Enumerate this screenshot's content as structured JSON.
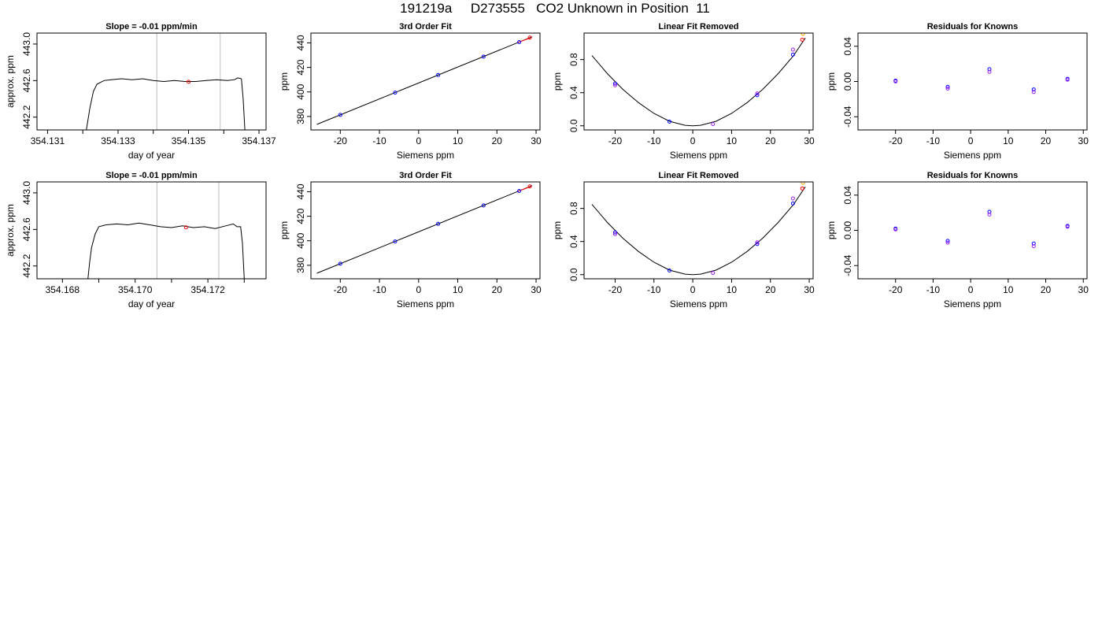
{
  "page": {
    "title": "191219a     D273555   CO2 Unknown in Position  11"
  },
  "colors": {
    "frame": "#000000",
    "trace": "#000000",
    "gridline": "#bebebe",
    "reference_marker": "#ff0000",
    "known_point": "#0000ff",
    "alt_point": "#a020f0",
    "extra_point": "#ffa500",
    "fit_line": "#000000"
  },
  "chart_data": [
    {
      "id": "r1-trace",
      "type": "line",
      "title": "Slope =  -0.01  ppm/min",
      "xlabel": "day of year",
      "ylabel": "approx. ppm",
      "xlim": [
        354.1307,
        354.1372
      ],
      "ylim": [
        442.06,
        443.12
      ],
      "xticks": [
        354.131,
        354.132,
        354.133,
        354.134,
        354.135,
        354.136,
        354.137
      ],
      "xtick_labels": [
        "354.131",
        "",
        "354.133",
        "",
        "354.135",
        "",
        "354.137"
      ],
      "yticks": [
        442.2,
        442.6,
        443.0
      ],
      "ytick_labels": [
        "442.2",
        "442.6",
        "443.0"
      ],
      "vlines": [
        354.1341,
        354.1359
      ],
      "marker": {
        "x": 354.135,
        "y": 442.587
      },
      "x": [
        354.1321,
        354.1322,
        354.1323,
        354.1324,
        354.1326,
        354.1328,
        354.1331,
        354.1334,
        354.1337,
        354.134,
        354.1343,
        354.1346,
        354.1349,
        354.1352,
        354.1355,
        354.1358,
        354.1361,
        354.1363,
        354.1364,
        354.1365,
        354.13655,
        354.1366
      ],
      "y": [
        442.06,
        442.3,
        442.48,
        442.56,
        442.6,
        442.61,
        442.62,
        442.61,
        442.62,
        442.6,
        442.59,
        442.6,
        442.59,
        442.59,
        442.6,
        442.61,
        442.6,
        442.61,
        442.63,
        442.62,
        442.4,
        442.06
      ]
    },
    {
      "id": "r1-fit",
      "type": "scatter",
      "title": "3rd Order Fit",
      "xlabel": "Siemens ppm",
      "ylabel": "ppm",
      "xlim": [
        -27.5,
        31
      ],
      "ylim": [
        369,
        448
      ],
      "xticks": [
        -20,
        -10,
        0,
        10,
        20,
        30
      ],
      "xtick_labels": [
        "-20",
        "-10",
        "0",
        "10",
        "20",
        "30"
      ],
      "yticks": [
        380,
        400,
        420,
        440
      ],
      "ytick_labels": [
        "380",
        "400",
        "420",
        "440"
      ],
      "line": {
        "x": [
          -26,
          29
        ],
        "y": [
          373.5,
          445
        ]
      },
      "red_segment": {
        "x": [
          25.5,
          28.5
        ],
        "y": [
          440.5,
          444
        ]
      },
      "points": [
        {
          "x": -20,
          "y": 381.3,
          "color": "known_point"
        },
        {
          "x": -6,
          "y": 399.4,
          "color": "known_point"
        },
        {
          "x": 5,
          "y": 413.8,
          "color": "known_point"
        },
        {
          "x": 16.6,
          "y": 428.8,
          "color": "known_point"
        },
        {
          "x": 25.7,
          "y": 440.6,
          "color": "known_point"
        },
        {
          "x": 28.4,
          "y": 444.3,
          "color": "reference_marker"
        }
      ]
    },
    {
      "id": "r1-linear",
      "type": "scatter",
      "title": "Linear Fit Removed",
      "xlabel": "Siemens ppm",
      "ylabel": "ppm",
      "xlim": [
        -28,
        31
      ],
      "ylim": [
        -0.05,
        1.12
      ],
      "xticks": [
        -20,
        -10,
        0,
        10,
        20,
        30
      ],
      "xtick_labels": [
        "-20",
        "-10",
        "0",
        "10",
        "20",
        "30"
      ],
      "yticks": [
        0.0,
        0.4,
        0.8
      ],
      "ytick_labels": [
        "0.0",
        "0.4",
        "0.8"
      ],
      "curve": {
        "x": [
          -26,
          -22,
          -18,
          -14,
          -10,
          -6,
          -2,
          0,
          2,
          6,
          10,
          14,
          18,
          22,
          26,
          29
        ],
        "y": [
          0.85,
          0.63,
          0.44,
          0.28,
          0.15,
          0.055,
          0.006,
          0.0,
          0.006,
          0.055,
          0.15,
          0.28,
          0.44,
          0.63,
          0.85,
          1.06
        ]
      },
      "points": [
        {
          "x": -20,
          "y": 0.51,
          "color": "known_point"
        },
        {
          "x": -20,
          "y": 0.49,
          "color": "alt_point"
        },
        {
          "x": -6,
          "y": 0.05,
          "color": "known_point"
        },
        {
          "x": 5.2,
          "y": 0.02,
          "color": "alt_point"
        },
        {
          "x": 16.6,
          "y": 0.37,
          "color": "known_point"
        },
        {
          "x": 16.6,
          "y": 0.39,
          "color": "alt_point"
        },
        {
          "x": 25.8,
          "y": 0.86,
          "color": "known_point"
        },
        {
          "x": 25.8,
          "y": 0.92,
          "color": "alt_point"
        },
        {
          "x": 28.2,
          "y": 1.04,
          "color": "reference_marker"
        },
        {
          "x": 28.4,
          "y": 1.11,
          "color": "extra_point"
        }
      ]
    },
    {
      "id": "r1-resid",
      "type": "scatter",
      "title": "Residuals for Knowns",
      "xlabel": "Siemens ppm",
      "ylabel": "ppm",
      "xlim": [
        -30,
        31
      ],
      "ylim": [
        -0.055,
        0.055
      ],
      "xticks": [
        -20,
        -10,
        0,
        10,
        20,
        30
      ],
      "xtick_labels": [
        "-20",
        "-10",
        "0",
        "10",
        "20",
        "30"
      ],
      "yticks": [
        -0.04,
        0.0,
        0.04
      ],
      "ytick_labels": [
        "-0.04",
        "0.00",
        "0.04"
      ],
      "points": [
        {
          "x": -20,
          "y": 0.001,
          "color": "known_point"
        },
        {
          "x": -20,
          "y": 0.0,
          "color": "alt_point"
        },
        {
          "x": -6.1,
          "y": -0.006,
          "color": "known_point"
        },
        {
          "x": -6.1,
          "y": -0.008,
          "color": "alt_point"
        },
        {
          "x": 5,
          "y": 0.014,
          "color": "known_point"
        },
        {
          "x": 5,
          "y": 0.011,
          "color": "alt_point"
        },
        {
          "x": 16.8,
          "y": -0.009,
          "color": "known_point"
        },
        {
          "x": 16.8,
          "y": -0.012,
          "color": "alt_point"
        },
        {
          "x": 25.8,
          "y": 0.003,
          "color": "known_point"
        },
        {
          "x": 25.8,
          "y": 0.002,
          "color": "alt_point"
        }
      ]
    },
    {
      "id": "r2-trace",
      "type": "line",
      "title": "Slope =  -0.01  ppm/min",
      "xlabel": "day of year",
      "ylabel": "approx. ppm",
      "xlim": [
        354.1673,
        354.1736
      ],
      "ylim": [
        442.06,
        443.12
      ],
      "xticks": [
        354.168,
        354.169,
        354.17,
        354.171,
        354.172,
        354.173
      ],
      "xtick_labels": [
        "354.168",
        "",
        "354.170",
        "",
        "354.172",
        ""
      ],
      "yticks": [
        442.2,
        442.6,
        443.0
      ],
      "ytick_labels": [
        "442.2",
        "442.6",
        "443.0"
      ],
      "vlines": [
        354.1706,
        354.1723
      ],
      "marker": {
        "x": 354.1714,
        "y": 442.622
      },
      "x": [
        354.1687,
        354.16875,
        354.1688,
        354.1689,
        354.169,
        354.1692,
        354.1695,
        354.1698,
        354.1701,
        354.1704,
        354.1707,
        354.171,
        354.1713,
        354.1716,
        354.1719,
        354.1722,
        354.1725,
        354.1727,
        354.1728,
        354.1729,
        354.17295,
        354.173
      ],
      "y": [
        442.06,
        442.25,
        442.4,
        442.55,
        442.63,
        442.65,
        442.66,
        442.65,
        442.67,
        442.65,
        442.63,
        442.62,
        442.64,
        442.62,
        442.63,
        442.61,
        442.64,
        442.66,
        442.63,
        442.63,
        442.45,
        442.06
      ]
    },
    {
      "id": "r2-fit",
      "type": "scatter",
      "title": "3rd Order Fit",
      "xlabel": "Siemens ppm",
      "ylabel": "ppm",
      "xlim": [
        -27.5,
        31
      ],
      "ylim": [
        369,
        448
      ],
      "xticks": [
        -20,
        -10,
        0,
        10,
        20,
        30
      ],
      "xtick_labels": [
        "-20",
        "-10",
        "0",
        "10",
        "20",
        "30"
      ],
      "yticks": [
        380,
        400,
        420,
        440
      ],
      "ytick_labels": [
        "380",
        "400",
        "420",
        "440"
      ],
      "line": {
        "x": [
          -26,
          29
        ],
        "y": [
          373.5,
          445
        ]
      },
      "red_segment": {
        "x": [
          25.5,
          28.5
        ],
        "y": [
          440.5,
          444
        ]
      },
      "points": [
        {
          "x": -20,
          "y": 381.3,
          "color": "known_point"
        },
        {
          "x": -6,
          "y": 399.4,
          "color": "known_point"
        },
        {
          "x": 5,
          "y": 413.8,
          "color": "known_point"
        },
        {
          "x": 16.6,
          "y": 428.8,
          "color": "known_point"
        },
        {
          "x": 25.7,
          "y": 440.6,
          "color": "known_point"
        },
        {
          "x": 28.4,
          "y": 444.3,
          "color": "reference_marker"
        }
      ]
    },
    {
      "id": "r2-linear",
      "type": "scatter",
      "title": "Linear Fit Removed",
      "xlabel": "Siemens ppm",
      "ylabel": "ppm",
      "xlim": [
        -28,
        31
      ],
      "ylim": [
        -0.05,
        1.12
      ],
      "xticks": [
        -20,
        -10,
        0,
        10,
        20,
        30
      ],
      "xtick_labels": [
        "-20",
        "-10",
        "0",
        "10",
        "20",
        "30"
      ],
      "yticks": [
        0.0,
        0.4,
        0.8
      ],
      "ytick_labels": [
        "0.0",
        "0.4",
        "0.8"
      ],
      "curve": {
        "x": [
          -26,
          -22,
          -18,
          -14,
          -10,
          -6,
          -2,
          0,
          2,
          6,
          10,
          14,
          18,
          22,
          26,
          29
        ],
        "y": [
          0.85,
          0.63,
          0.44,
          0.28,
          0.15,
          0.055,
          0.006,
          0.0,
          0.006,
          0.055,
          0.15,
          0.28,
          0.44,
          0.63,
          0.85,
          1.06
        ]
      },
      "points": [
        {
          "x": -20,
          "y": 0.51,
          "color": "known_point"
        },
        {
          "x": -20,
          "y": 0.49,
          "color": "alt_point"
        },
        {
          "x": -6,
          "y": 0.05,
          "color": "known_point"
        },
        {
          "x": 5.2,
          "y": 0.02,
          "color": "alt_point"
        },
        {
          "x": 16.6,
          "y": 0.37,
          "color": "known_point"
        },
        {
          "x": 16.6,
          "y": 0.39,
          "color": "alt_point"
        },
        {
          "x": 25.8,
          "y": 0.86,
          "color": "known_point"
        },
        {
          "x": 25.8,
          "y": 0.92,
          "color": "alt_point"
        },
        {
          "x": 28.2,
          "y": 1.04,
          "color": "reference_marker"
        },
        {
          "x": 28.4,
          "y": 1.11,
          "color": "extra_point"
        }
      ]
    },
    {
      "id": "r2-resid",
      "type": "scatter",
      "title": "Residuals for Knowns",
      "xlabel": "Siemens ppm",
      "ylabel": "ppm",
      "xlim": [
        -30,
        31
      ],
      "ylim": [
        -0.055,
        0.055
      ],
      "xticks": [
        -20,
        -10,
        0,
        10,
        20,
        30
      ],
      "xtick_labels": [
        "-20",
        "-10",
        "0",
        "10",
        "20",
        "30"
      ],
      "yticks": [
        -0.04,
        0.0,
        0.04
      ],
      "ytick_labels": [
        "-0.04",
        "0.00",
        "0.04"
      ],
      "points": [
        {
          "x": -20,
          "y": 0.002,
          "color": "known_point"
        },
        {
          "x": -20,
          "y": 0.001,
          "color": "alt_point"
        },
        {
          "x": -6.1,
          "y": -0.012,
          "color": "known_point"
        },
        {
          "x": -6.1,
          "y": -0.014,
          "color": "alt_point"
        },
        {
          "x": 5,
          "y": 0.021,
          "color": "known_point"
        },
        {
          "x": 5,
          "y": 0.018,
          "color": "alt_point"
        },
        {
          "x": 16.8,
          "y": -0.015,
          "color": "known_point"
        },
        {
          "x": 16.8,
          "y": -0.018,
          "color": "alt_point"
        },
        {
          "x": 25.8,
          "y": 0.005,
          "color": "known_point"
        },
        {
          "x": 25.8,
          "y": 0.004,
          "color": "alt_point"
        }
      ]
    }
  ]
}
